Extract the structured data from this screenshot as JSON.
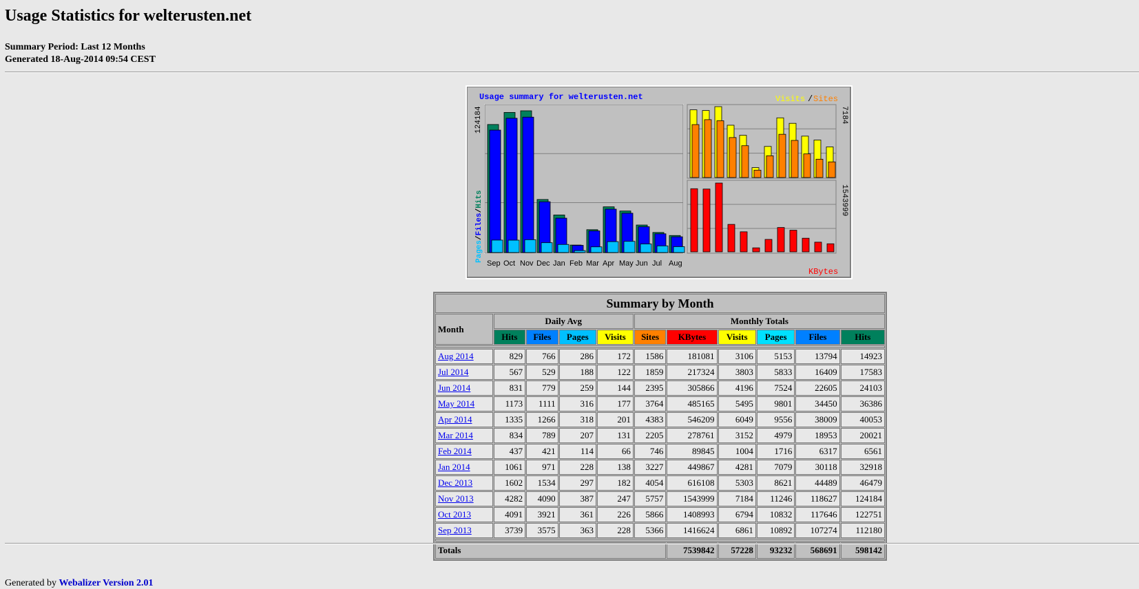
{
  "page": {
    "title": "Usage Statistics for welterusten.net",
    "summary_period": "Summary Period: Last 12 Months",
    "generated": "Generated 18-Aug-2014 09:54 CEST"
  },
  "graph": {
    "title": "Usage summary for welterusten.net",
    "legend_visits": "Visits",
    "legend_sep": "/",
    "legend_sites": "Sites",
    "left_axis_max": "124184",
    "left_legend_pages": "Pages",
    "left_legend_files": "Files",
    "left_legend_hits": "Hits",
    "right_top_max": "7184",
    "right_bottom_max": "1543999",
    "kbytes_label": "KBytes",
    "colors": {
      "hits": "#00805c",
      "files": "#0000ff",
      "pages": "#00c0ff",
      "visits": "#ffff00",
      "sites": "#ff8000",
      "kbytes": "#ff0000",
      "title": "#0000ff"
    }
  },
  "chart_data": {
    "type": "bar",
    "title": "Usage summary for welterusten.net",
    "categories": [
      "Sep",
      "Oct",
      "Nov",
      "Dec",
      "Jan",
      "Feb",
      "Mar",
      "Apr",
      "May",
      "Jun",
      "Jul",
      "Aug"
    ],
    "series": [
      {
        "name": "Hits",
        "values": [
          112180,
          122751,
          124184,
          46479,
          32918,
          6561,
          20021,
          40053,
          36386,
          24103,
          17583,
          14923
        ]
      },
      {
        "name": "Files",
        "values": [
          107274,
          117646,
          118627,
          44489,
          30118,
          6317,
          18953,
          38009,
          34450,
          22605,
          16409,
          13794
        ]
      },
      {
        "name": "Pages",
        "values": [
          10892,
          10832,
          11246,
          8621,
          7079,
          1716,
          4979,
          9556,
          9801,
          7524,
          5833,
          5153
        ]
      },
      {
        "name": "Visits",
        "values": [
          6861,
          6794,
          7184,
          5303,
          4281,
          1004,
          3152,
          6049,
          5495,
          4196,
          3803,
          3106
        ]
      },
      {
        "name": "Sites",
        "values": [
          5366,
          5866,
          5757,
          4054,
          3227,
          746,
          2205,
          4383,
          3764,
          2395,
          1859,
          1586
        ]
      },
      {
        "name": "KBytes",
        "values": [
          1416624,
          1408993,
          1543999,
          616108,
          449867,
          89845,
          278761,
          546209,
          485165,
          305866,
          217324,
          181081
        ]
      }
    ],
    "ylim_hits": [
      0,
      124184
    ],
    "ylim_visits": [
      0,
      7184
    ],
    "ylim_kbytes": [
      0,
      1543999
    ]
  },
  "table": {
    "title": "Summary by Month",
    "month_header": "Month",
    "daily_avg_header": "Daily Avg",
    "monthly_totals_header": "Monthly Totals",
    "daily_cols": [
      {
        "label": "Hits",
        "color": "#00805c",
        "text": "#000000"
      },
      {
        "label": "Files",
        "color": "#0080ff",
        "text": "#000000"
      },
      {
        "label": "Pages",
        "color": "#00c0ff",
        "text": "#000000"
      },
      {
        "label": "Visits",
        "color": "#ffff00",
        "text": "#000000"
      }
    ],
    "monthly_cols": [
      {
        "label": "Sites",
        "color": "#ff8000",
        "text": "#000000"
      },
      {
        "label": "KBytes",
        "color": "#ff0000",
        "text": "#000000"
      },
      {
        "label": "Visits",
        "color": "#ffff00",
        "text": "#000000"
      },
      {
        "label": "Pages",
        "color": "#00e0ff",
        "text": "#000000"
      },
      {
        "label": "Files",
        "color": "#0080ff",
        "text": "#000000"
      },
      {
        "label": "Hits",
        "color": "#00805c",
        "text": "#000000"
      }
    ],
    "rows": [
      {
        "month": "Aug 2014",
        "d": [
          "829",
          "766",
          "286",
          "172"
        ],
        "m": [
          "1586",
          "181081",
          "3106",
          "5153",
          "13794",
          "14923"
        ]
      },
      {
        "month": "Jul 2014",
        "d": [
          "567",
          "529",
          "188",
          "122"
        ],
        "m": [
          "1859",
          "217324",
          "3803",
          "5833",
          "16409",
          "17583"
        ]
      },
      {
        "month": "Jun 2014",
        "d": [
          "831",
          "779",
          "259",
          "144"
        ],
        "m": [
          "2395",
          "305866",
          "4196",
          "7524",
          "22605",
          "24103"
        ]
      },
      {
        "month": "May 2014",
        "d": [
          "1173",
          "1111",
          "316",
          "177"
        ],
        "m": [
          "3764",
          "485165",
          "5495",
          "9801",
          "34450",
          "36386"
        ]
      },
      {
        "month": "Apr 2014",
        "d": [
          "1335",
          "1266",
          "318",
          "201"
        ],
        "m": [
          "4383",
          "546209",
          "6049",
          "9556",
          "38009",
          "40053"
        ]
      },
      {
        "month": "Mar 2014",
        "d": [
          "834",
          "789",
          "207",
          "131"
        ],
        "m": [
          "2205",
          "278761",
          "3152",
          "4979",
          "18953",
          "20021"
        ]
      },
      {
        "month": "Feb 2014",
        "d": [
          "437",
          "421",
          "114",
          "66"
        ],
        "m": [
          "746",
          "89845",
          "1004",
          "1716",
          "6317",
          "6561"
        ]
      },
      {
        "month": "Jan 2014",
        "d": [
          "1061",
          "971",
          "228",
          "138"
        ],
        "m": [
          "3227",
          "449867",
          "4281",
          "7079",
          "30118",
          "32918"
        ]
      },
      {
        "month": "Dec 2013",
        "d": [
          "1602",
          "1534",
          "297",
          "182"
        ],
        "m": [
          "4054",
          "616108",
          "5303",
          "8621",
          "44489",
          "46479"
        ]
      },
      {
        "month": "Nov 2013",
        "d": [
          "4282",
          "4090",
          "387",
          "247"
        ],
        "m": [
          "5757",
          "1543999",
          "7184",
          "11246",
          "118627",
          "124184"
        ]
      },
      {
        "month": "Oct 2013",
        "d": [
          "4091",
          "3921",
          "361",
          "226"
        ],
        "m": [
          "5866",
          "1408993",
          "6794",
          "10832",
          "117646",
          "122751"
        ]
      },
      {
        "month": "Sep 2013",
        "d": [
          "3739",
          "3575",
          "363",
          "228"
        ],
        "m": [
          "5366",
          "1416624",
          "6861",
          "10892",
          "107274",
          "112180"
        ]
      }
    ],
    "totals_label": "Totals",
    "totals": [
      "7539842",
      "57228",
      "93232",
      "568691",
      "598142"
    ]
  },
  "footer": {
    "prefix": "Generated by ",
    "link": "Webalizer Version 2.01"
  }
}
